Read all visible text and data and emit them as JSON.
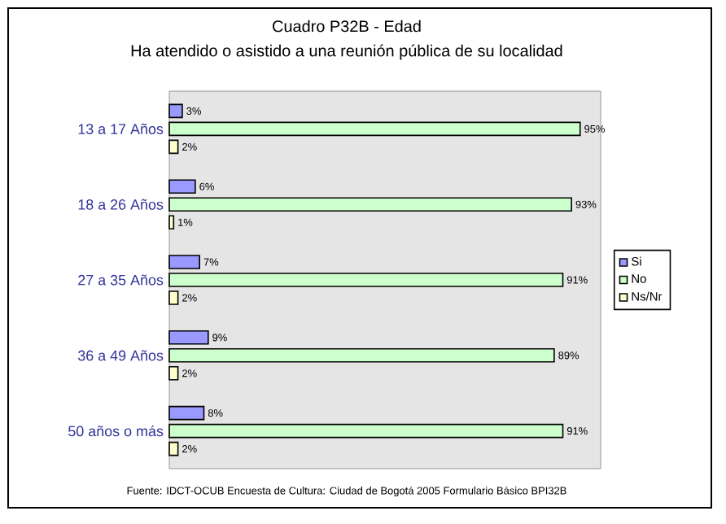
{
  "chart_data": {
    "type": "bar",
    "orientation": "horizontal",
    "title": "Cuadro P32B - Edad",
    "subtitle": "Ha atendido o asistido a una reunión pública de su localidad",
    "categories": [
      "13 a 17 Años",
      "18 a 26 Años",
      "27 a 35 Años",
      "36 a 49 Años",
      "50 años o más"
    ],
    "series": [
      {
        "name": "Si",
        "color": "#9999ff",
        "values": [
          3,
          6,
          7,
          9,
          8
        ],
        "value_labels": [
          "3%",
          "6%",
          "7%",
          "9%",
          "8%"
        ]
      },
      {
        "name": "No",
        "color": "#ccffcc",
        "values": [
          95,
          93,
          91,
          89,
          91
        ],
        "value_labels": [
          "95%",
          "93%",
          "91%",
          "89%",
          "91%"
        ]
      },
      {
        "name": "Ns/Nr",
        "color": "#ffffcc",
        "values": [
          2,
          1,
          2,
          2,
          2
        ],
        "value_labels": [
          "2%",
          "1%",
          "2%",
          "2%",
          "2%"
        ]
      }
    ],
    "tick_labels": "y",
    "legend": "right",
    "annotations": [
      "Fuente: IDCT-OCUB Encuesta de Cultura: Ciudad de Bogotá 2005 Formulario Básico BPI32B"
    ]
  }
}
